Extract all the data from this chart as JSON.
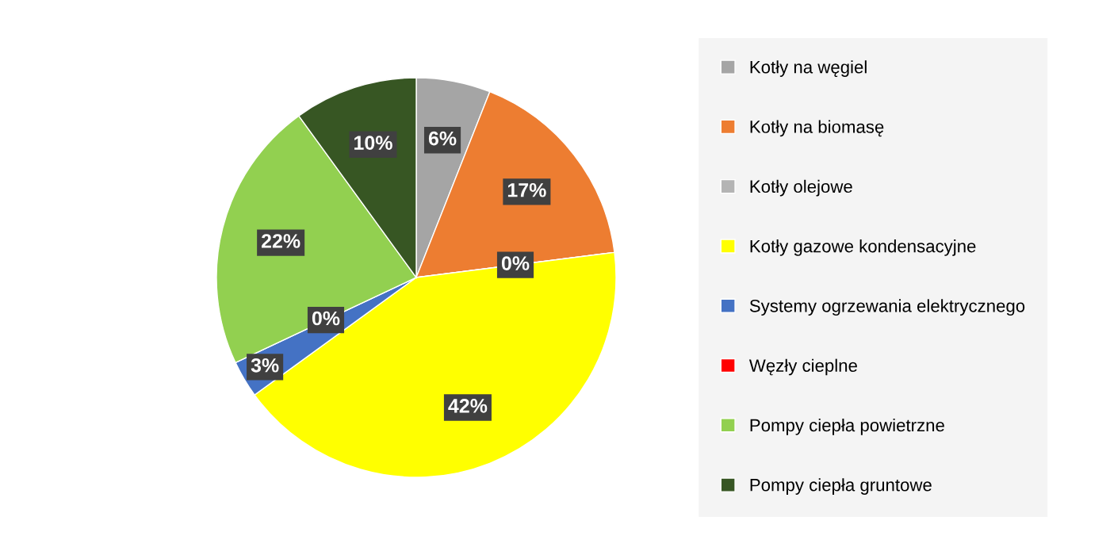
{
  "chart_data": {
    "type": "pie",
    "categories": [
      "Kotły na węgiel",
      "Kotły na biomasę",
      "Kotły olejowe",
      "Kotły gazowe kondensacyjne",
      "Systemy ogrzewania elektrycznego",
      "Węzły cieplne",
      "Pompy ciepła powietrzne",
      "Pompy ciepła gruntowe"
    ],
    "values": [
      6,
      17,
      0,
      42,
      3,
      0,
      22,
      10
    ],
    "colors": [
      "#a5a5a5",
      "#ed7d31",
      "#b4b4b4",
      "#ffff00",
      "#4472c4",
      "#ff0000",
      "#92d050",
      "#375623"
    ],
    "value_labels": [
      "6%",
      "17%",
      "0%",
      "42%",
      "3%",
      "0%",
      "22%",
      "10%"
    ],
    "legend": "right"
  }
}
